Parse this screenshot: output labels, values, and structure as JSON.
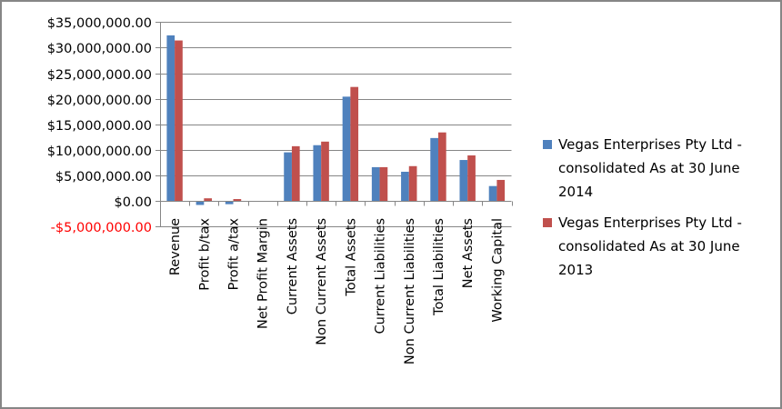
{
  "chart_data": {
    "type": "bar",
    "title": "",
    "xlabel": "",
    "ylabel": "",
    "ylim": [
      -5000000,
      35000000
    ],
    "grid": true,
    "legend_position": "right",
    "y_ticks": [
      35000000,
      30000000,
      25000000,
      20000000,
      15000000,
      10000000,
      5000000,
      0,
      -5000000
    ],
    "y_tick_labels": [
      "$35,000,000.00",
      "$30,000,000.00",
      "$25,000,000.00",
      "$20,000,000.00",
      "$15,000,000.00",
      "$10,000,000.00",
      "$5,000,000.00",
      "$0.00",
      "-$5,000,000.00"
    ],
    "categories": [
      "Revenue",
      "Profit b/tax",
      "Profit a/tax",
      "Net Profit Margin",
      "Current Assets",
      "Non Current Assets",
      "Total Assets",
      "Current Liabilities",
      "Non Current Liabilities",
      "Total Liabilities",
      "Net Assets",
      "Working Capital"
    ],
    "series": [
      {
        "name": "Vegas Enterprises Pty Ltd - consolidated As at 30 June 2014",
        "color": "#4F81BD",
        "values": [
          32400000,
          -800000,
          -650000,
          0,
          9500000,
          10900000,
          20400000,
          6600000,
          5700000,
          12300000,
          8000000,
          2900000
        ]
      },
      {
        "name": "Vegas Enterprises Pty Ltd - consolidated As at 30 June 2013",
        "color": "#C0504D",
        "values": [
          31400000,
          500000,
          350000,
          0,
          10700000,
          11600000,
          22300000,
          6600000,
          6800000,
          13400000,
          8900000,
          4100000
        ]
      }
    ]
  }
}
